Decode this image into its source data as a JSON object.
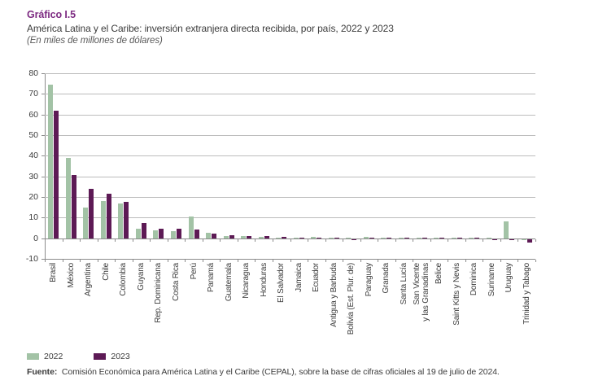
{
  "header": {
    "label": "Gráfico I.5",
    "title": "América Latina y el Caribe: inversión extranjera directa recibida, por país, 2022 y 2023",
    "unit_note": "(En miles de millones de dólares)"
  },
  "legend": {
    "items": [
      {
        "label": "2022",
        "color": "#a3c3a6"
      },
      {
        "label": "2023",
        "color": "#5d1a55"
      }
    ]
  },
  "footer": {
    "source_label": "Fuente:",
    "source_text": "Comisión Económica para América Latina y el Caribe (CEPAL), sobre la base de cifras oficiales al 19 de julio de 2024."
  },
  "colors": {
    "title_accent": "#7d2b82",
    "series_2022": "#a3c3a6",
    "series_2023": "#5d1a55",
    "gridline": "#bcbcbc",
    "axis": "#8c8c8c",
    "text": "#3b3b3b"
  },
  "chart_data": {
    "type": "bar",
    "title": "América Latina y el Caribe: inversión extranjera directa recibida, por país, 2022 y 2023",
    "unit": "miles de millones de dólares",
    "ylim": [
      -10,
      80
    ],
    "ytick_step": 10,
    "grid": true,
    "legend_position": "bottom-left",
    "categories": [
      "Brasil",
      "México",
      "Argentina",
      "Chile",
      "Colombia",
      "Guyana",
      "Rep. Dominicana",
      "Costa Rica",
      "Perú",
      "Panamá",
      "Guatemala",
      "Nicaragua",
      "Honduras",
      "El Salvador",
      "Jamaica",
      "Ecuador",
      "Antigua y Barbuda",
      "Bolivia (Est. Plur. de)",
      "Paraguay",
      "Granada",
      "Santa Lucía",
      "San Vicente\ny las Granadinas",
      "Belice",
      "Saint Kitts y Nevis",
      "Dominica",
      "Suriname",
      "Uruguay",
      "Trinidad y Tabago"
    ],
    "series": [
      {
        "name": "2022",
        "color": "#a3c3a6",
        "values": [
          74.5,
          39.0,
          15.0,
          18.0,
          17.0,
          4.5,
          4.0,
          3.6,
          10.7,
          2.8,
          1.2,
          1.2,
          0.8,
          0.1,
          0.3,
          0.5,
          0.3,
          0.1,
          0.5,
          0.2,
          0.3,
          0.1,
          0.3,
          0.1,
          0.2,
          0.1,
          8.0,
          -0.6
        ]
      },
      {
        "name": "2023",
        "color": "#5d1a55",
        "values": [
          62.0,
          30.5,
          24.0,
          21.5,
          17.5,
          7.2,
          4.6,
          4.5,
          4.2,
          2.2,
          1.4,
          1.2,
          1.1,
          0.8,
          0.4,
          0.4,
          0.3,
          -0.3,
          0.4,
          0.2,
          0.3,
          0.1,
          0.2,
          0.1,
          0.2,
          -0.1,
          -0.4,
          -1.6
        ]
      }
    ]
  }
}
